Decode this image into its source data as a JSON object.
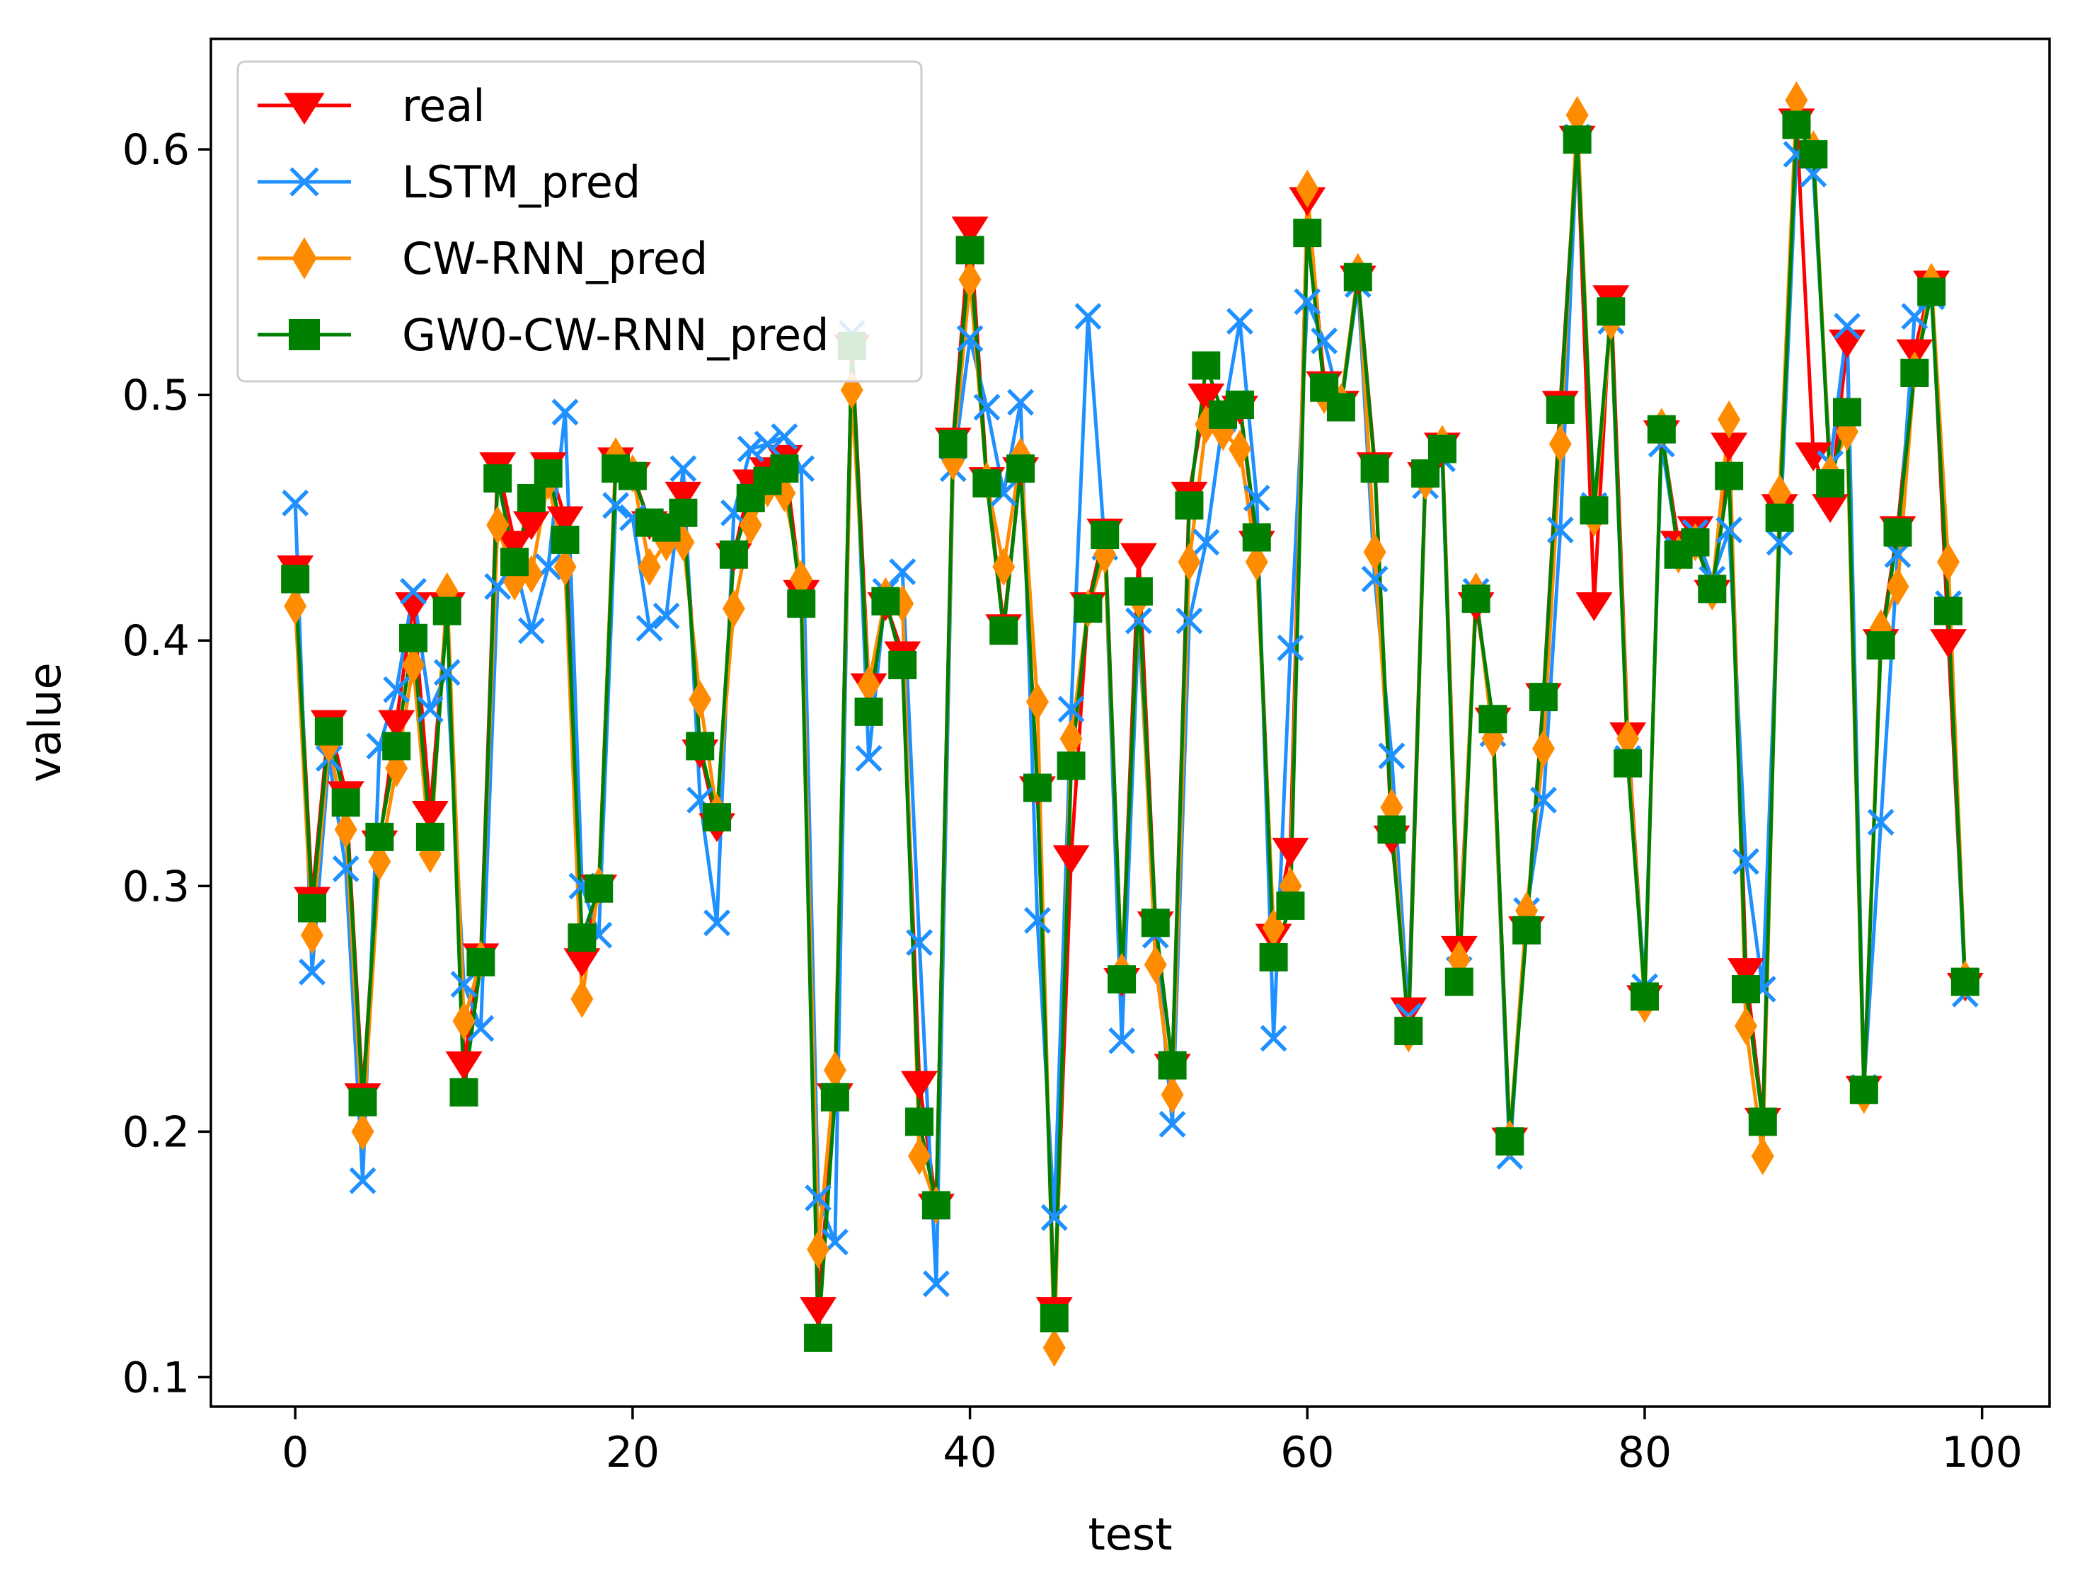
{
  "chart_data": {
    "type": "line",
    "title": "",
    "xlabel": "test",
    "ylabel": "value",
    "xlim": [
      -5,
      104
    ],
    "ylim": [
      0.088,
      0.645
    ],
    "xticks": [
      0,
      20,
      40,
      60,
      80,
      100
    ],
    "yticks": [
      0.1,
      0.2,
      0.3,
      0.4,
      0.5,
      0.6
    ],
    "xtick_labels": [
      "0",
      "20",
      "40",
      "60",
      "80",
      "100"
    ],
    "ytick_labels": [
      "0.1",
      "0.2",
      "0.3",
      "0.4",
      "0.5",
      "0.6"
    ],
    "legend_position": "top-left",
    "x": [
      0,
      1,
      2,
      3,
      4,
      5,
      6,
      7,
      8,
      9,
      10,
      11,
      12,
      13,
      14,
      15,
      16,
      17,
      18,
      19,
      20,
      21,
      22,
      23,
      24,
      25,
      26,
      27,
      28,
      29,
      30,
      31,
      32,
      33,
      34,
      35,
      36,
      37,
      38,
      39,
      40,
      41,
      42,
      43,
      44,
      45,
      46,
      47,
      48,
      49,
      50,
      51,
      52,
      53,
      54,
      55,
      56,
      57,
      58,
      59,
      60,
      61,
      62,
      63,
      64,
      65,
      66,
      67,
      68,
      69,
      70,
      71,
      72,
      73,
      74,
      75,
      76,
      77,
      78,
      79,
      80,
      81,
      82,
      83,
      84,
      85,
      86,
      87,
      88,
      89,
      90,
      91,
      92,
      93,
      94,
      95,
      96,
      97,
      98,
      99
    ],
    "series": [
      {
        "name": "real",
        "color": "#ff0000",
        "marker": "triangle-down",
        "values": [
          0.43,
          0.295,
          0.367,
          0.338,
          0.215,
          0.318,
          0.367,
          0.415,
          0.33,
          0.415,
          0.228,
          0.272,
          0.472,
          0.44,
          0.448,
          0.472,
          0.45,
          0.27,
          0.3,
          0.474,
          0.468,
          0.448,
          0.445,
          0.46,
          0.355,
          0.325,
          0.435,
          0.465,
          0.47,
          0.475,
          0.42,
          0.128,
          0.215,
          0.52,
          0.382,
          0.415,
          0.395,
          0.22,
          0.17,
          0.482,
          0.568,
          0.466,
          0.406,
          0.47,
          0.34,
          0.128,
          0.312,
          0.415,
          0.445,
          0.262,
          0.435,
          0.285,
          0.227,
          0.46,
          0.5,
          0.493,
          0.495,
          0.44,
          0.28,
          0.315,
          0.58,
          0.505,
          0.497,
          0.548,
          0.472,
          0.32,
          0.25,
          0.468,
          0.48,
          0.275,
          0.415,
          0.368,
          0.197,
          0.283,
          0.378,
          0.497,
          0.605,
          0.415,
          0.54,
          0.362,
          0.255,
          0.485,
          0.44,
          0.446,
          0.42,
          0.48,
          0.266,
          0.205,
          0.455,
          0.612,
          0.476,
          0.455,
          0.522,
          0.218,
          0.4,
          0.446,
          0.518,
          0.546,
          0.4,
          0.26
        ]
      },
      {
        "name": "LSTM_pred",
        "color": "#1e90ff",
        "marker": "x",
        "values": [
          0.456,
          0.265,
          0.352,
          0.307,
          0.18,
          0.357,
          0.38,
          0.42,
          0.372,
          0.387,
          0.26,
          0.242,
          0.422,
          0.432,
          0.404,
          0.43,
          0.493,
          0.3,
          0.28,
          0.455,
          0.45,
          0.405,
          0.41,
          0.47,
          0.335,
          0.285,
          0.452,
          0.478,
          0.48,
          0.483,
          0.47,
          0.173,
          0.155,
          0.525,
          0.352,
          0.42,
          0.428,
          0.277,
          0.138,
          0.47,
          0.523,
          0.495,
          0.46,
          0.497,
          0.286,
          0.165,
          0.372,
          0.532,
          0.438,
          0.237,
          0.408,
          0.28,
          0.203,
          0.408,
          0.44,
          0.49,
          0.53,
          0.458,
          0.238,
          0.397,
          0.538,
          0.522,
          0.495,
          0.545,
          0.425,
          0.353,
          0.247,
          0.463,
          0.474,
          0.266,
          0.42,
          0.362,
          0.19,
          0.29,
          0.335,
          0.445,
          0.605,
          0.455,
          0.53,
          0.352,
          0.259,
          0.48,
          0.437,
          0.444,
          0.425,
          0.445,
          0.31,
          0.258,
          0.44,
          0.598,
          0.59,
          0.472,
          0.528,
          0.218,
          0.326,
          0.435,
          0.532,
          0.54,
          0.415,
          0.256
        ]
      },
      {
        "name": "CW-RNN_pred",
        "color": "#ff8c00",
        "marker": "thin-diamond",
        "values": [
          0.414,
          0.28,
          0.358,
          0.323,
          0.2,
          0.31,
          0.348,
          0.39,
          0.313,
          0.42,
          0.245,
          0.27,
          0.447,
          0.424,
          0.427,
          0.465,
          0.43,
          0.254,
          0.3,
          0.475,
          0.468,
          0.43,
          0.44,
          0.44,
          0.376,
          0.33,
          0.413,
          0.447,
          0.462,
          0.46,
          0.425,
          0.152,
          0.225,
          0.502,
          0.382,
          0.418,
          0.415,
          0.19,
          0.17,
          0.473,
          0.547,
          0.465,
          0.43,
          0.475,
          0.375,
          0.112,
          0.36,
          0.413,
          0.435,
          0.265,
          0.417,
          0.268,
          0.215,
          0.432,
          0.488,
          0.485,
          0.478,
          0.432,
          0.283,
          0.3,
          0.584,
          0.5,
          0.497,
          0.55,
          0.436,
          0.332,
          0.24,
          0.465,
          0.48,
          0.27,
          0.42,
          0.36,
          0.197,
          0.29,
          0.356,
          0.48,
          0.614,
          0.45,
          0.53,
          0.36,
          0.252,
          0.487,
          0.435,
          0.44,
          0.42,
          0.49,
          0.243,
          0.19,
          0.46,
          0.62,
          0.6,
          0.468,
          0.485,
          0.215,
          0.405,
          0.422,
          0.51,
          0.546,
          0.432,
          0.262
        ]
      },
      {
        "name": "GW0-CW-RNN_pred",
        "color": "#008000",
        "marker": "square",
        "values": [
          0.425,
          0.291,
          0.363,
          0.334,
          0.212,
          0.32,
          0.357,
          0.401,
          0.32,
          0.412,
          0.216,
          0.269,
          0.466,
          0.432,
          0.458,
          0.468,
          0.441,
          0.279,
          0.299,
          0.47,
          0.467,
          0.448,
          0.446,
          0.452,
          0.357,
          0.328,
          0.435,
          0.458,
          0.465,
          0.47,
          0.415,
          0.116,
          0.214,
          0.52,
          0.371,
          0.416,
          0.39,
          0.204,
          0.17,
          0.48,
          0.559,
          0.464,
          0.404,
          0.47,
          0.34,
          0.124,
          0.349,
          0.413,
          0.443,
          0.262,
          0.42,
          0.285,
          0.227,
          0.455,
          0.512,
          0.492,
          0.496,
          0.442,
          0.271,
          0.292,
          0.566,
          0.503,
          0.495,
          0.548,
          0.47,
          0.323,
          0.241,
          0.468,
          0.478,
          0.261,
          0.417,
          0.368,
          0.196,
          0.282,
          0.377,
          0.494,
          0.604,
          0.453,
          0.534,
          0.35,
          0.255,
          0.486,
          0.435,
          0.44,
          0.421,
          0.467,
          0.258,
          0.204,
          0.45,
          0.61,
          0.598,
          0.464,
          0.493,
          0.217,
          0.398,
          0.444,
          0.509,
          0.542,
          0.412,
          0.261
        ]
      }
    ]
  }
}
